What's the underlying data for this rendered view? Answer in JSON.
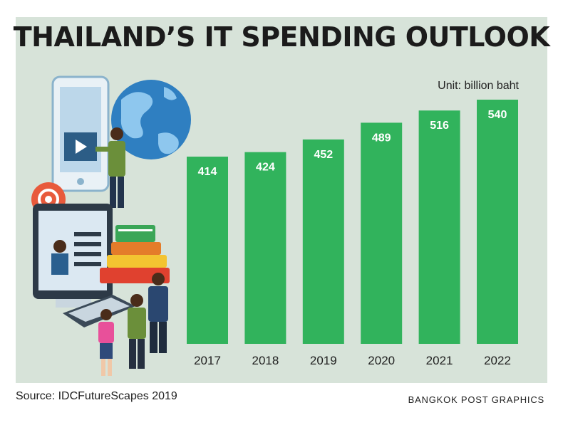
{
  "title": "THAILAND’S IT SPENDING OUTLOOK",
  "unit_label": "Unit: billion baht",
  "source": "Source: IDCFutureScapes 2019",
  "credit": "BANGKOK POST GRAPHICS",
  "colors": {
    "panel": "#d7e3d9",
    "bar": "#31b35c",
    "bar_label": "#ffffff"
  },
  "chart_data": {
    "type": "bar",
    "title": "THAILAND’S IT SPENDING OUTLOOK",
    "categories": [
      "2017",
      "2018",
      "2019",
      "2020",
      "2021",
      "2022"
    ],
    "values": [
      414,
      424,
      452,
      489,
      516,
      540
    ],
    "ylabel": "Unit: billion baht",
    "xlabel": "",
    "ylim": [
      0,
      540
    ],
    "grid": false,
    "data_labels": true
  }
}
